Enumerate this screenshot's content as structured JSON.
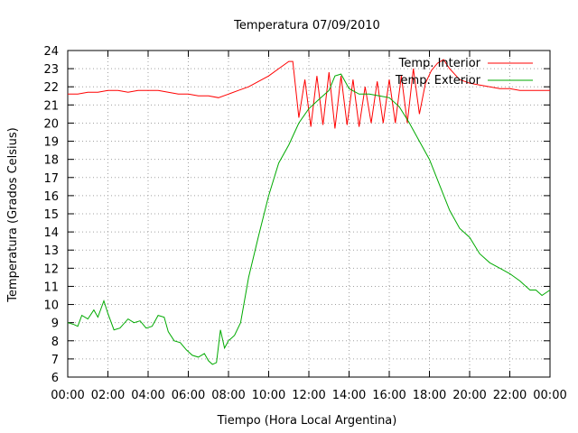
{
  "chart_data": {
    "type": "line",
    "title": "Temperatura 07/09/2010",
    "xlabel": "Tiempo (Hora Local Argentina)",
    "ylabel": "Temperatura (Grados Celsius)",
    "xlim": [
      0,
      24
    ],
    "ylim": [
      6,
      24
    ],
    "x_ticks": [
      "00:00",
      "02:00",
      "04:00",
      "06:00",
      "08:00",
      "10:00",
      "12:00",
      "14:00",
      "16:00",
      "18:00",
      "20:00",
      "22:00",
      "00:00"
    ],
    "y_ticks": [
      6,
      7,
      8,
      9,
      10,
      11,
      12,
      13,
      14,
      15,
      16,
      17,
      18,
      19,
      20,
      21,
      22,
      23,
      24
    ],
    "grid": true,
    "legend_position": "top-right",
    "series": [
      {
        "name": "Temp. Interior",
        "color": "#ff0000",
        "x": [
          0,
          0.5,
          1,
          1.5,
          2,
          2.5,
          3,
          3.5,
          4,
          4.5,
          5,
          5.5,
          6,
          6.5,
          7,
          7.5,
          8,
          8.5,
          9,
          9.5,
          10,
          10.5,
          11,
          11.2,
          11.5,
          11.8,
          12.1,
          12.4,
          12.7,
          13.0,
          13.3,
          13.6,
          13.9,
          14.2,
          14.5,
          14.8,
          15.1,
          15.4,
          15.7,
          16.0,
          16.3,
          16.6,
          16.9,
          17.2,
          17.5,
          17.8,
          18.1,
          18.4,
          18.7,
          19.0,
          19.5,
          20,
          20.5,
          21,
          21.5,
          22,
          22.5,
          23,
          23.5,
          24
        ],
        "values": [
          21.6,
          21.6,
          21.7,
          21.7,
          21.8,
          21.8,
          21.7,
          21.8,
          21.8,
          21.8,
          21.7,
          21.6,
          21.6,
          21.5,
          21.5,
          21.4,
          21.6,
          21.8,
          22.0,
          22.3,
          22.6,
          23.0,
          23.4,
          23.4,
          20.3,
          22.4,
          19.8,
          22.6,
          19.9,
          22.8,
          19.7,
          22.6,
          19.9,
          22.4,
          19.8,
          22.0,
          20.0,
          22.3,
          20.0,
          22.4,
          20.0,
          22.6,
          20.0,
          23.0,
          20.5,
          22.2,
          22.9,
          23.3,
          23.5,
          23.0,
          22.4,
          22.2,
          22.1,
          22.0,
          21.9,
          21.9,
          21.8,
          21.8,
          21.8,
          21.8
        ]
      },
      {
        "name": "Temp. Exterior",
        "color": "#00aa00",
        "x": [
          0,
          0.3,
          0.5,
          0.7,
          1.0,
          1.3,
          1.5,
          1.8,
          2.0,
          2.3,
          2.6,
          3.0,
          3.3,
          3.6,
          3.9,
          4.2,
          4.5,
          4.8,
          5.0,
          5.3,
          5.6,
          5.9,
          6.2,
          6.5,
          6.8,
          7.0,
          7.2,
          7.4,
          7.6,
          7.8,
          8.0,
          8.3,
          8.6,
          9.0,
          9.5,
          10.0,
          10.5,
          11.0,
          11.5,
          12.0,
          12.5,
          13.0,
          13.3,
          13.6,
          14.0,
          14.5,
          15.0,
          15.5,
          16.0,
          16.5,
          17.0,
          17.5,
          18.0,
          18.5,
          19.0,
          19.5,
          20.0,
          20.5,
          21.0,
          21.5,
          22.0,
          22.5,
          23.0,
          23.3,
          23.6,
          24.0
        ],
        "values": [
          9.0,
          8.9,
          8.8,
          9.4,
          9.2,
          9.7,
          9.3,
          10.2,
          9.5,
          8.6,
          8.7,
          9.2,
          9.0,
          9.1,
          8.7,
          8.8,
          9.4,
          9.3,
          8.5,
          8.0,
          7.9,
          7.5,
          7.2,
          7.1,
          7.3,
          6.9,
          6.7,
          6.8,
          8.6,
          7.6,
          8.0,
          8.3,
          9.0,
          11.5,
          13.8,
          16.0,
          17.8,
          18.8,
          20.0,
          20.8,
          21.3,
          21.8,
          22.6,
          22.7,
          21.9,
          21.6,
          21.6,
          21.5,
          21.4,
          20.9,
          20.0,
          19.0,
          18.0,
          16.6,
          15.2,
          14.2,
          13.7,
          12.8,
          12.3,
          12.0,
          11.7,
          11.3,
          10.8,
          10.8,
          10.5,
          10.8
        ]
      }
    ]
  }
}
